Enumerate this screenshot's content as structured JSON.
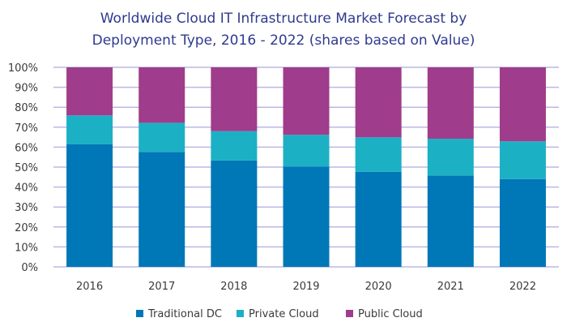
{
  "chart_data": {
    "type": "bar",
    "stacked": true,
    "title": [
      "Worldwide Cloud IT Infrastructure Market Forecast by",
      "Deployment Type, 2016 - 2022 (shares based on Value)"
    ],
    "categories": [
      "2016",
      "2017",
      "2018",
      "2019",
      "2020",
      "2021",
      "2022"
    ],
    "ylim": [
      0,
      100
    ],
    "yticks": [
      "0%",
      "10%",
      "20%",
      "30%",
      "40%",
      "50%",
      "60%",
      "70%",
      "80%",
      "90%",
      "100%"
    ],
    "grid": true,
    "legend_position": "bottom",
    "series": [
      {
        "name": "Traditional DC",
        "color": "#0077b6",
        "values": [
          61.4,
          57.6,
          53.3,
          50.3,
          47.6,
          45.8,
          44.0
        ]
      },
      {
        "name": "Private Cloud",
        "color": "#1cb0c4",
        "values": [
          14.5,
          14.6,
          14.7,
          15.9,
          17.3,
          18.4,
          18.9
        ]
      },
      {
        "name": "Public Cloud",
        "color": "#a03c8c",
        "values": [
          24.1,
          27.8,
          32.0,
          33.8,
          35.1,
          35.8,
          37.1
        ]
      }
    ]
  }
}
